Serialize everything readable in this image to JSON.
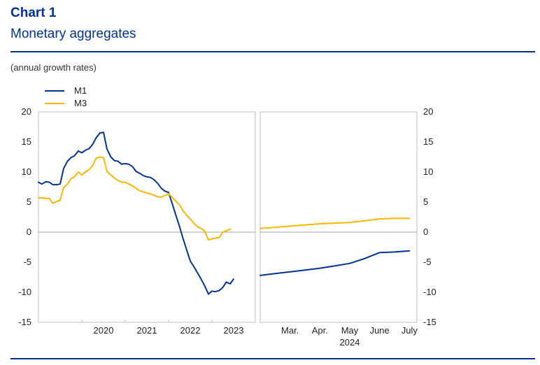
{
  "header": {
    "label": "Chart 1",
    "title": "Monetary aggregates",
    "subtitle": "(annual growth rates)"
  },
  "chart_data": {
    "type": "line",
    "ylim": [
      -15,
      20
    ],
    "yticks": [
      20,
      15,
      10,
      5,
      0,
      -5,
      -10,
      -15
    ],
    "grid": false,
    "legend_position": "top-left",
    "panels": [
      {
        "id": "monthly",
        "xlim": [
          2019.0,
          2024.0
        ],
        "x_tick_labels": [
          {
            "label": "2020",
            "x": 2020.0
          },
          {
            "label": "2021",
            "x": 2021.0
          },
          {
            "label": "2022",
            "x": 2022.0
          },
          {
            "label": "2023",
            "x": 2023.0
          }
        ],
        "series": [
          {
            "name": "M1",
            "color": "#003299",
            "x": [
              2019.0,
              2019.08,
              2019.17,
              2019.25,
              2019.33,
              2019.42,
              2019.5,
              2019.58,
              2019.67,
              2019.75,
              2019.83,
              2019.92,
              2020.0,
              2020.08,
              2020.17,
              2020.25,
              2020.33,
              2020.42,
              2020.5,
              2020.58,
              2020.67,
              2020.75,
              2020.83,
              2020.92,
              2021.0,
              2021.08,
              2021.17,
              2021.25,
              2021.33,
              2021.42,
              2021.5,
              2021.58,
              2021.67,
              2021.75,
              2021.83,
              2021.92,
              2022.0,
              2022.08,
              2022.17,
              2022.25,
              2022.33,
              2022.42,
              2022.5,
              2022.58,
              2022.67,
              2022.75,
              2022.83,
              2022.92,
              2023.0,
              2023.08,
              2023.17,
              2023.25,
              2023.33,
              2023.42,
              2023.5,
              2023.58,
              2023.67
            ],
            "values": [
              8.3,
              8.0,
              8.4,
              8.3,
              7.9,
              7.9,
              8.0,
              10.6,
              11.8,
              12.4,
              12.7,
              13.5,
              13.2,
              13.6,
              13.9,
              14.6,
              15.7,
              16.5,
              16.6,
              13.8,
              12.5,
              11.9,
              11.8,
              11.3,
              11.4,
              11.3,
              10.9,
              10.1,
              9.8,
              9.4,
              9.2,
              9.1,
              8.7,
              8.1,
              7.3,
              6.8,
              6.6,
              4.8,
              2.8,
              1.0,
              -1.0,
              -3.0,
              -4.8,
              -5.7,
              -6.8,
              -7.8,
              -8.9,
              -10.3,
              -9.8,
              -9.9,
              -9.7,
              -9.2,
              -8.3,
              -8.6,
              -7.8,
              null,
              null
            ]
          },
          {
            "name": "M3",
            "color": "#FFB400",
            "x": [
              2019.0,
              2019.08,
              2019.17,
              2019.25,
              2019.33,
              2019.42,
              2019.5,
              2019.58,
              2019.67,
              2019.75,
              2019.83,
              2019.92,
              2020.0,
              2020.08,
              2020.17,
              2020.25,
              2020.33,
              2020.42,
              2020.5,
              2020.58,
              2020.67,
              2020.75,
              2020.83,
              2020.92,
              2021.0,
              2021.08,
              2021.17,
              2021.25,
              2021.33,
              2021.42,
              2021.5,
              2021.58,
              2021.67,
              2021.75,
              2021.83,
              2021.92,
              2022.0,
              2022.08,
              2022.17,
              2022.25,
              2022.33,
              2022.42,
              2022.5,
              2022.58,
              2022.67,
              2022.75,
              2022.83,
              2022.92,
              2023.0,
              2023.08,
              2023.17,
              2023.25,
              2023.33,
              2023.42,
              2023.5,
              2023.58,
              2023.67
            ],
            "values": [
              5.7,
              5.7,
              5.6,
              5.6,
              4.8,
              5.1,
              5.3,
              7.4,
              8.0,
              8.9,
              9.2,
              10.0,
              9.5,
              10.0,
              10.4,
              11.1,
              12.3,
              12.5,
              12.4,
              10.1,
              9.5,
              9.0,
              8.6,
              8.3,
              8.3,
              8.0,
              7.7,
              7.3,
              6.9,
              6.7,
              6.5,
              6.4,
              6.1,
              5.9,
              5.8,
              6.1,
              6.4,
              5.8,
              5.1,
              4.6,
              3.6,
              2.8,
              2.2,
              1.5,
              0.9,
              0.6,
              0.2,
              -1.3,
              -1.1,
              -1.0,
              -0.9,
              0.0,
              0.2,
              0.5,
              null,
              null,
              null
            ]
          }
        ]
      },
      {
        "id": "2024",
        "xlim": [
          2.0,
          7.25
        ],
        "x_tick_labels": [
          {
            "label": "Mar.",
            "x": 3
          },
          {
            "label": "Apr.",
            "x": 4
          },
          {
            "label": "May",
            "x": 5
          },
          {
            "label": "June",
            "x": 6
          },
          {
            "label": "July",
            "x": 7
          }
        ],
        "year_label": "2024",
        "series": [
          {
            "name": "M1",
            "color": "#003299",
            "x": [
              2.0,
              2.5,
              3.0,
              3.5,
              4.0,
              4.5,
              5.0,
              5.5,
              6.0,
              6.5,
              7.0
            ],
            "values": [
              -7.2,
              -6.9,
              -6.6,
              -6.3,
              -6.0,
              -5.6,
              -5.2,
              -4.4,
              -3.4,
              -3.3,
              -3.1
            ]
          },
          {
            "name": "M3",
            "color": "#FFB400",
            "x": [
              2.0,
              2.5,
              3.0,
              3.5,
              4.0,
              4.5,
              5.0,
              5.5,
              6.0,
              6.5,
              7.0
            ],
            "values": [
              0.6,
              0.8,
              1.0,
              1.2,
              1.4,
              1.5,
              1.6,
              1.9,
              2.2,
              2.3,
              2.3
            ]
          }
        ]
      }
    ]
  }
}
